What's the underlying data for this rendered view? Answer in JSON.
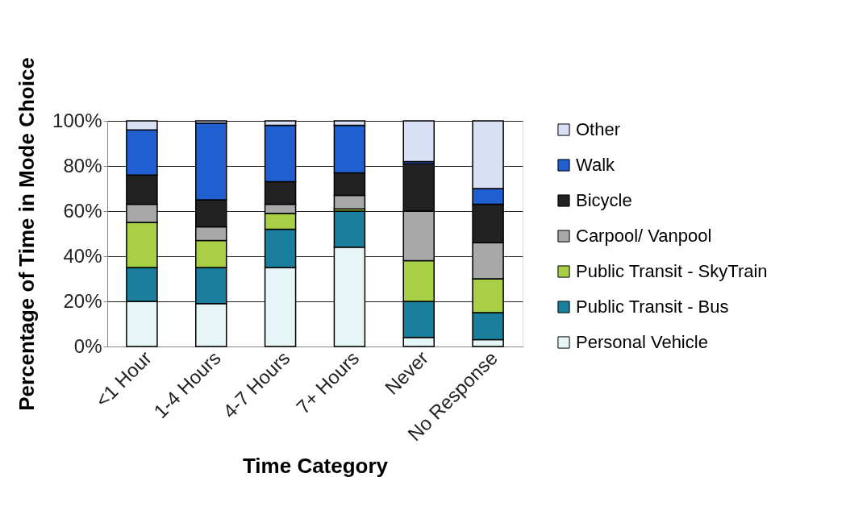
{
  "chart_data": {
    "type": "bar",
    "stacked": true,
    "xlabel": "Time Category",
    "ylabel": "Percentage of Time in Mode Choice",
    "categories": [
      "<1 Hour",
      "1-4 Hours",
      "4-7 Hours",
      "7+ Hours",
      "Never",
      "No Response"
    ],
    "series": [
      {
        "name": "Personal Vehicle",
        "color": "#e6f6f6",
        "values": [
          20,
          19,
          35,
          44,
          4,
          3
        ]
      },
      {
        "name": "Public Transit - Bus",
        "color": "#1a7f9c",
        "values": [
          15,
          16,
          17,
          16,
          16,
          12
        ]
      },
      {
        "name": "Public Transit - SkyTrain",
        "color": "#a8cf45",
        "values": [
          20,
          12,
          7,
          1,
          18,
          15
        ]
      },
      {
        "name": "Carpool/ Vanpool",
        "color": "#a8a8a8",
        "values": [
          8,
          6,
          4,
          6,
          22,
          16
        ]
      },
      {
        "name": "Bicycle",
        "color": "#222222",
        "values": [
          13,
          12,
          10,
          10,
          21,
          17
        ]
      },
      {
        "name": "Walk",
        "color": "#1f5fd0",
        "values": [
          20,
          34,
          25,
          21,
          1,
          7
        ]
      },
      {
        "name": "Other",
        "color": "#d9dff5",
        "values": [
          4,
          1,
          2,
          2,
          18,
          30
        ]
      }
    ],
    "ylim": [
      0,
      100
    ],
    "yticks": [
      {
        "value": 0,
        "label": "0%"
      },
      {
        "value": 20,
        "label": "20%"
      },
      {
        "value": 40,
        "label": "40%"
      },
      {
        "value": 60,
        "label": "60%"
      },
      {
        "value": 80,
        "label": "80%"
      },
      {
        "value": 100,
        "label": "100%"
      }
    ],
    "grid": "y",
    "legend": "right"
  }
}
